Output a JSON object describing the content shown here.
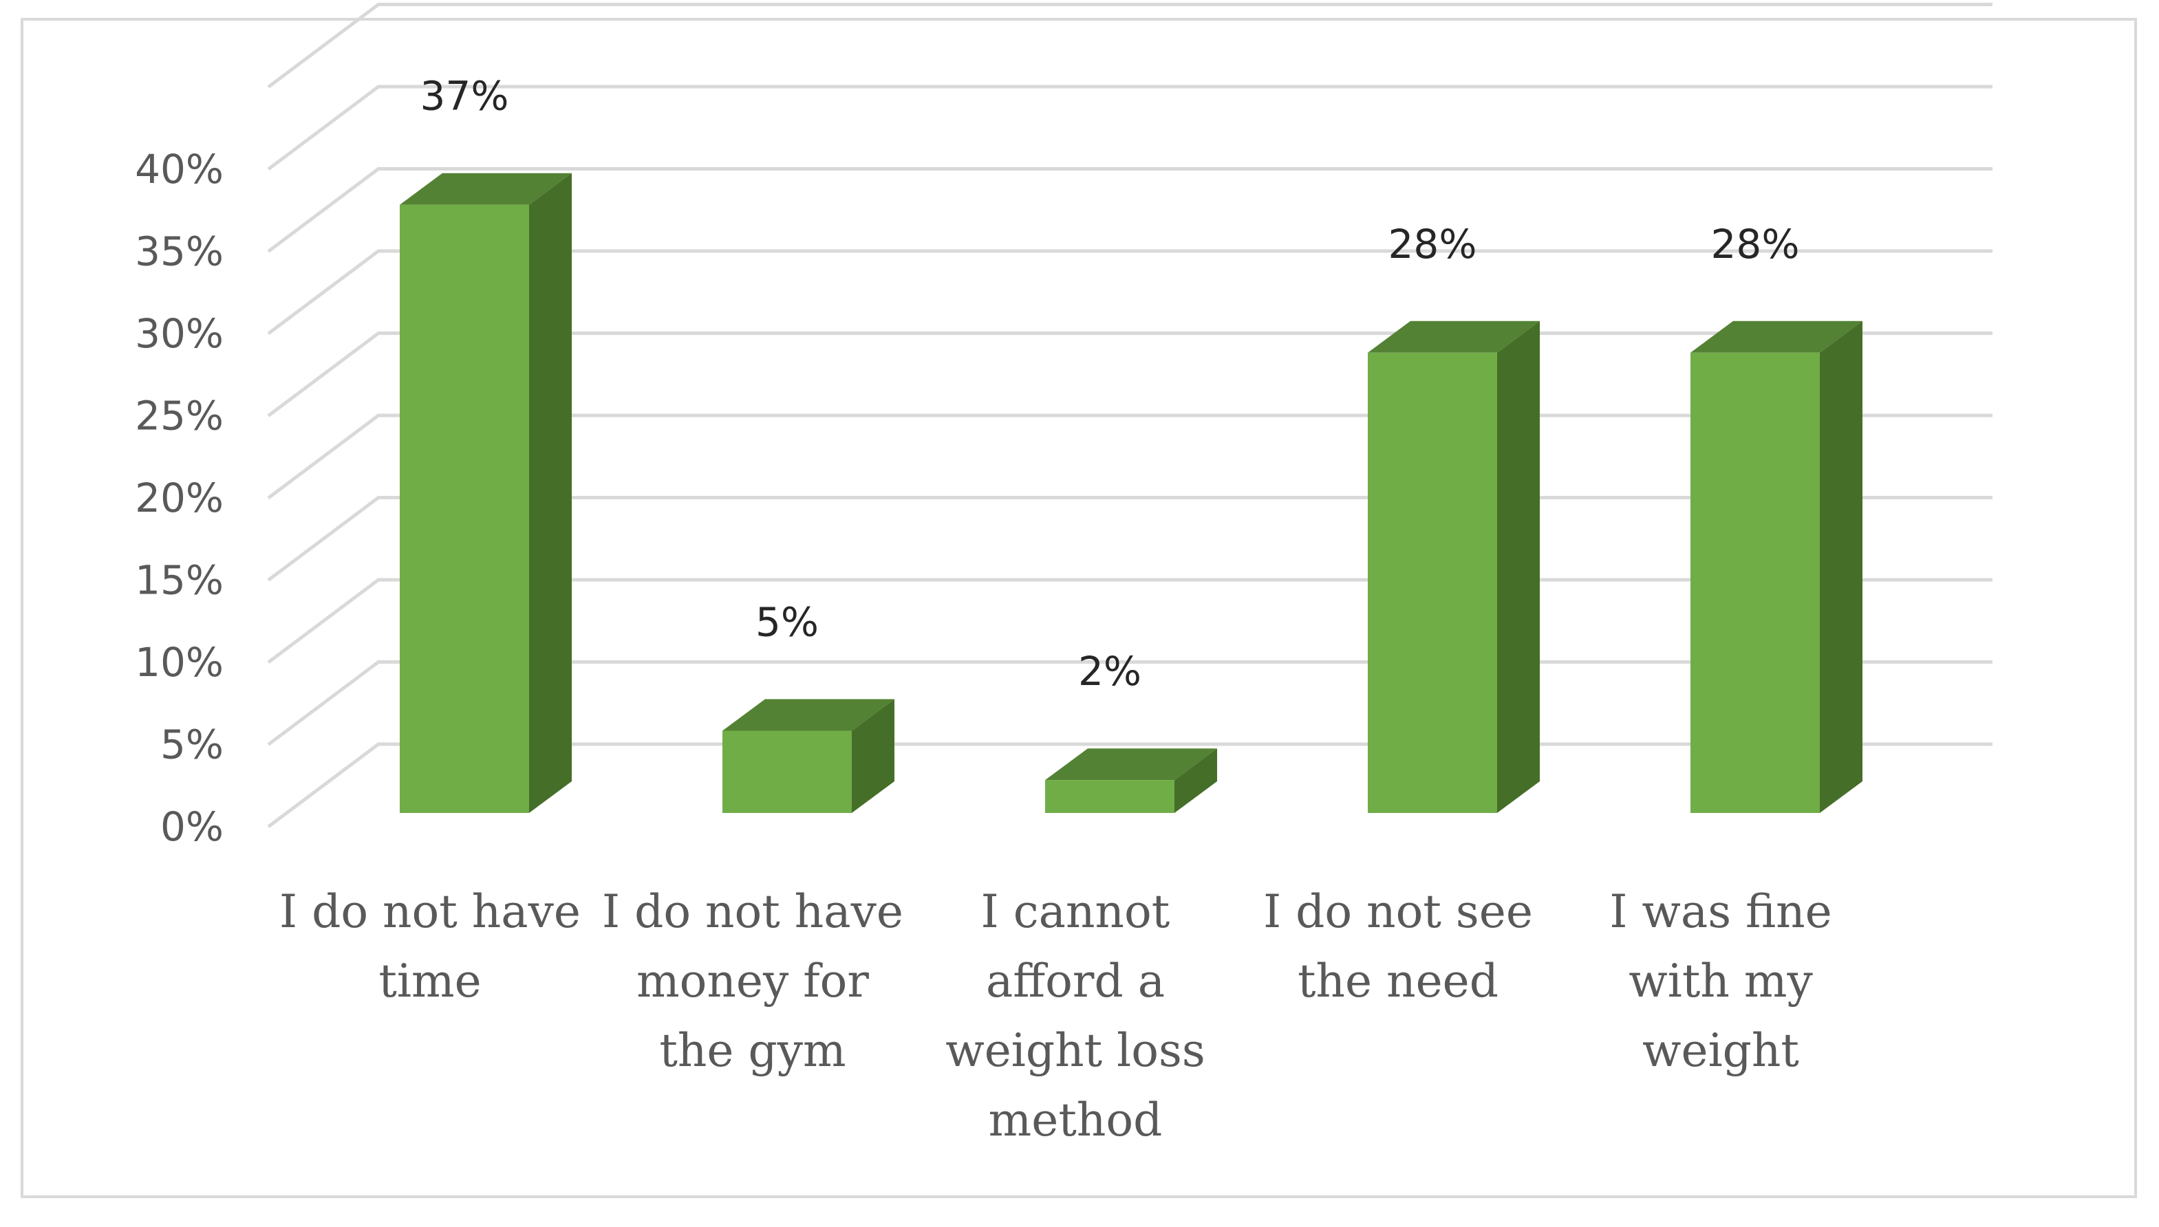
{
  "chart_data": {
    "type": "bar",
    "title": "",
    "xlabel": "",
    "ylabel": "",
    "categories": [
      [
        "I do not have",
        "time"
      ],
      [
        "I do not have",
        "money for",
        "the gym"
      ],
      [
        "I cannot",
        "afford a",
        "weight loss",
        "method"
      ],
      [
        "I do not see",
        "the need"
      ],
      [
        "I was fine",
        "with my",
        "weight"
      ]
    ],
    "values": [
      37,
      5,
      2,
      28,
      28
    ],
    "value_labels": [
      "37%",
      "5%",
      "2%",
      "28%",
      "28%"
    ],
    "ylim": [
      0,
      45
    ],
    "yticks": [
      0,
      5,
      10,
      15,
      20,
      25,
      30,
      35,
      40
    ],
    "ytick_labels": [
      "0%",
      "5%",
      "10%",
      "15%",
      "20%",
      "25%",
      "30%",
      "35%",
      "40%"
    ],
    "grid": true,
    "legend": "none",
    "three_d": true
  },
  "colors": {
    "bar_front": "#70ad47",
    "bar_top": "#548235",
    "bar_side": "#456e28",
    "gridline": "#d9d9d9",
    "tick_text": "#595959",
    "data_text": "#262626"
  }
}
